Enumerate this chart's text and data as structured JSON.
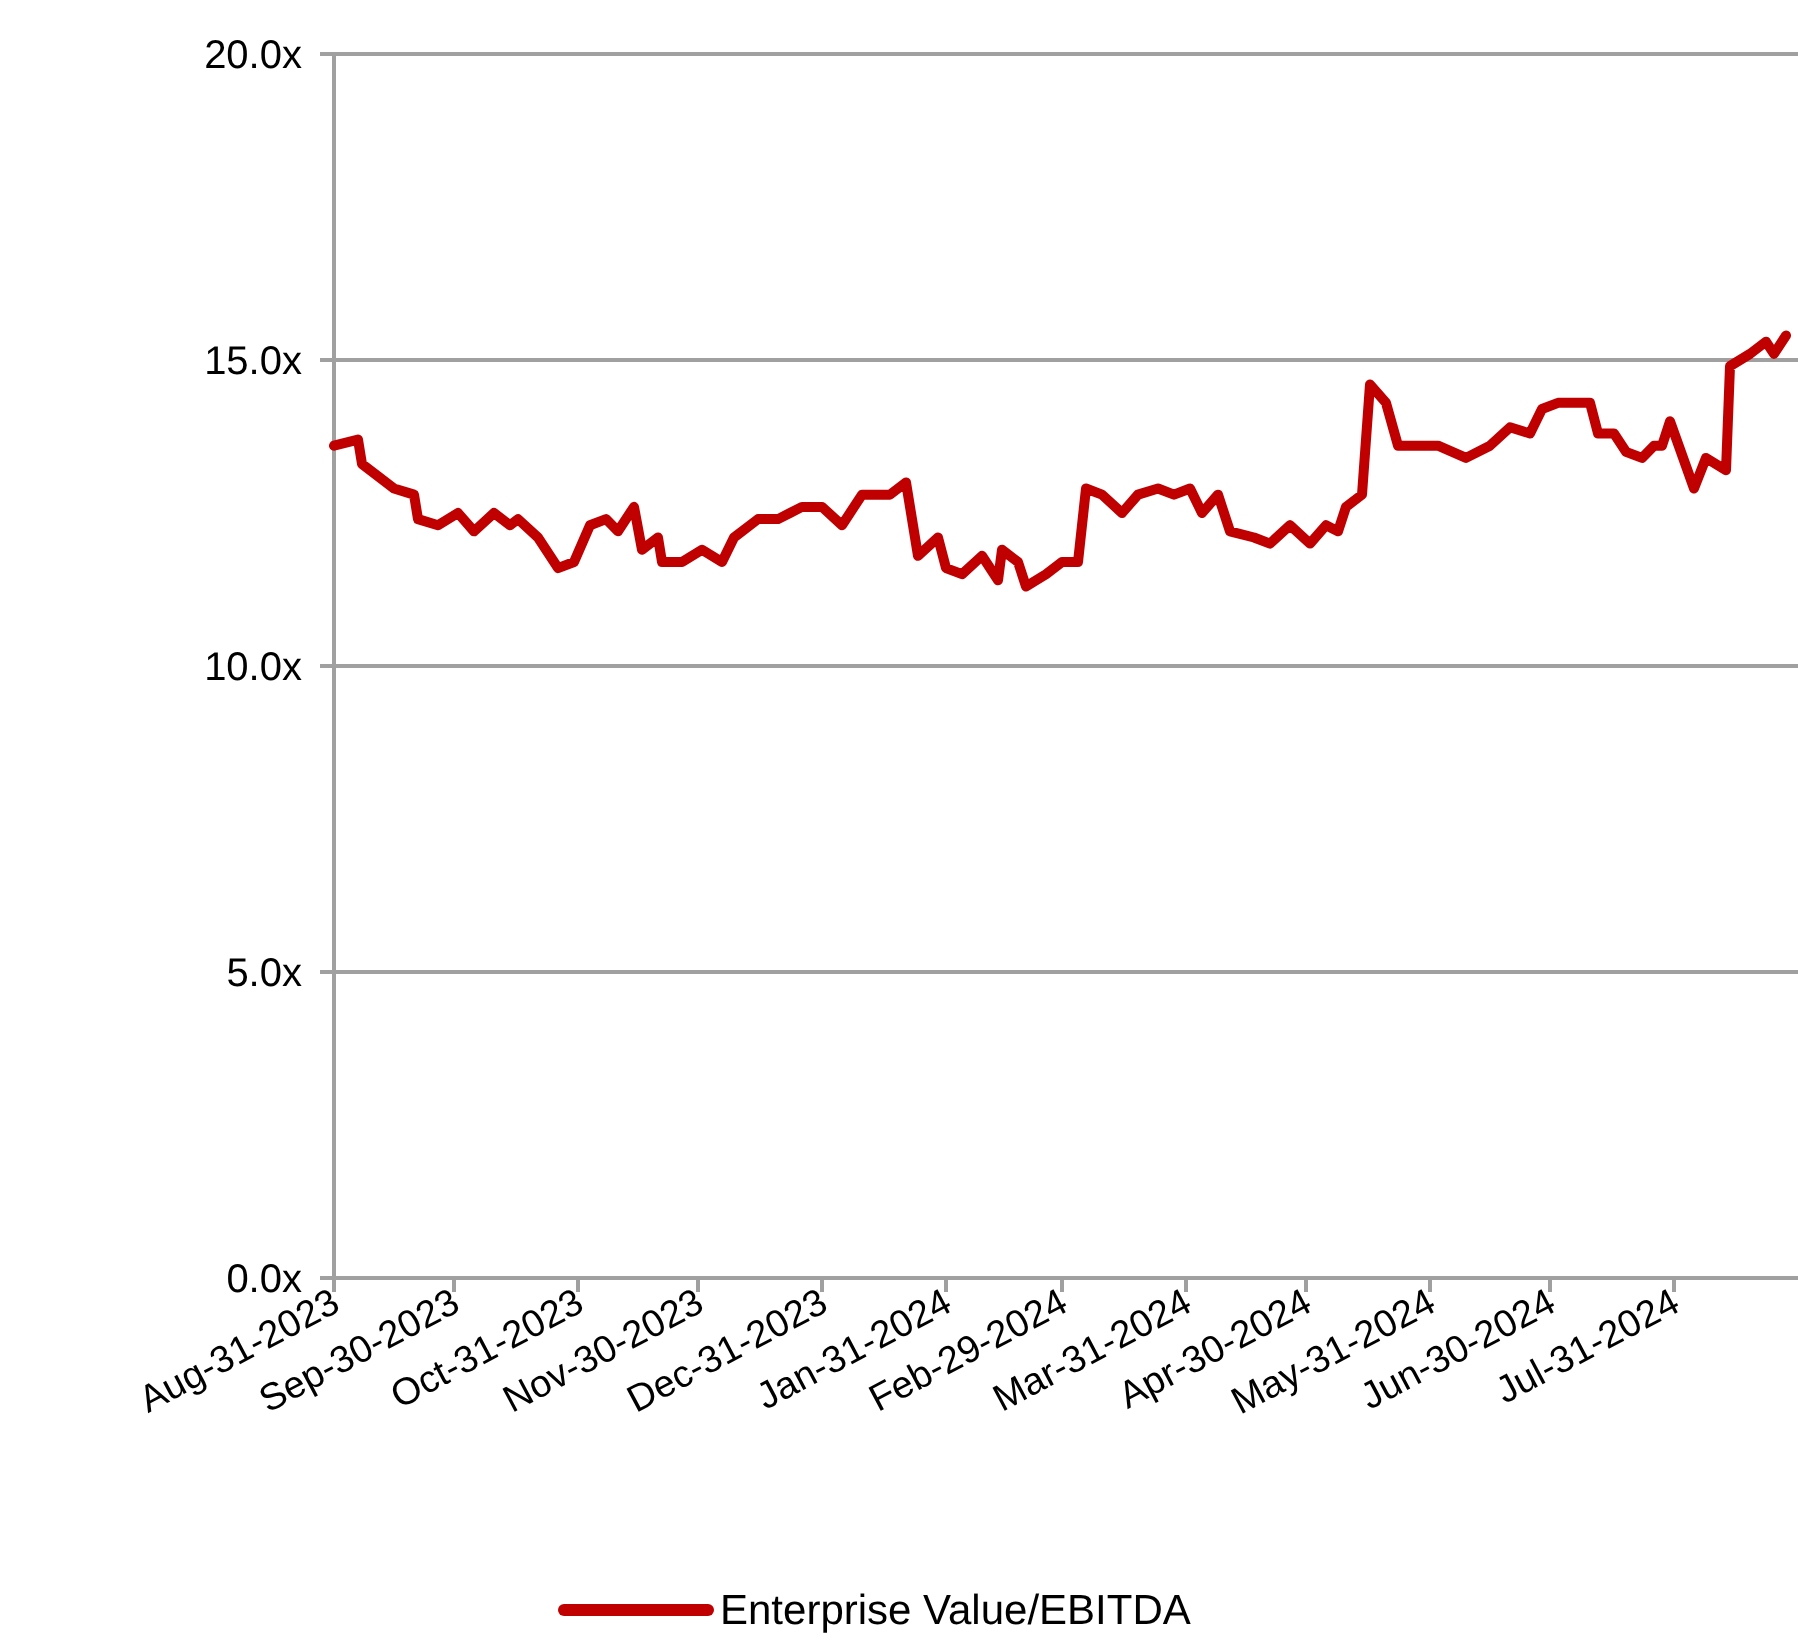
{
  "chart_data": {
    "type": "line",
    "x": [
      "2023-08-31",
      "2023-09-06",
      "2023-09-07",
      "2023-09-11",
      "2023-09-15",
      "2023-09-20",
      "2023-09-21",
      "2023-09-26",
      "2023-10-01",
      "2023-10-05",
      "2023-10-10",
      "2023-10-14",
      "2023-10-16",
      "2023-10-21",
      "2023-10-26",
      "2023-10-30",
      "2023-11-03",
      "2023-11-07",
      "2023-11-10",
      "2023-11-14",
      "2023-11-16",
      "2023-11-20",
      "2023-11-21",
      "2023-11-26",
      "2023-12-01",
      "2023-12-06",
      "2023-12-09",
      "2023-12-15",
      "2023-12-20",
      "2023-12-23",
      "2023-12-26",
      "2023-12-31",
      "2024-01-05",
      "2024-01-10",
      "2024-01-17",
      "2024-01-21",
      "2024-01-24",
      "2024-01-29",
      "2024-01-31",
      "2024-02-04",
      "2024-02-09",
      "2024-02-13",
      "2024-02-14",
      "2024-02-18",
      "2024-02-20",
      "2024-02-25",
      "2024-02-29",
      "2024-03-04",
      "2024-03-06",
      "2024-03-10",
      "2024-03-15",
      "2024-03-19",
      "2024-03-24",
      "2024-03-28",
      "2024-04-01",
      "2024-04-04",
      "2024-04-08",
      "2024-04-11",
      "2024-04-17",
      "2024-04-21",
      "2024-04-26",
      "2024-05-01",
      "2024-05-05",
      "2024-05-08",
      "2024-05-10",
      "2024-05-14",
      "2024-05-16",
      "2024-05-20",
      "2024-05-23",
      "2024-05-27",
      "2024-06-02",
      "2024-06-09",
      "2024-06-15",
      "2024-06-20",
      "2024-06-25",
      "2024-06-28",
      "2024-07-02",
      "2024-07-10",
      "2024-07-12",
      "2024-07-16",
      "2024-07-19",
      "2024-07-23",
      "2024-07-26",
      "2024-07-28",
      "2024-07-30",
      "2024-08-05",
      "2024-08-08",
      "2024-08-13",
      "2024-08-14",
      "2024-08-19",
      "2024-08-23",
      "2024-08-25",
      "2024-08-28"
    ],
    "series": [
      {
        "name": "Enterprise Value/EBITDA",
        "color": "#c00000",
        "values": [
          13.6,
          13.7,
          13.3,
          13.1,
          12.9,
          12.8,
          12.4,
          12.3,
          12.5,
          12.2,
          12.5,
          12.3,
          12.4,
          12.1,
          11.6,
          11.7,
          12.3,
          12.4,
          12.2,
          12.6,
          11.9,
          12.1,
          11.7,
          11.7,
          11.9,
          11.7,
          12.1,
          12.4,
          12.4,
          12.5,
          12.6,
          12.6,
          12.3,
          12.8,
          12.8,
          13.0,
          11.8,
          12.1,
          11.6,
          11.5,
          11.8,
          11.4,
          11.9,
          11.7,
          11.3,
          11.5,
          11.7,
          11.7,
          12.9,
          12.8,
          12.5,
          12.8,
          12.9,
          12.8,
          12.9,
          12.5,
          12.8,
          12.2,
          12.1,
          12.0,
          12.3,
          12.0,
          12.3,
          12.2,
          12.6,
          12.8,
          14.6,
          14.3,
          13.6,
          13.6,
          13.6,
          13.4,
          13.6,
          13.9,
          13.8,
          14.2,
          14.3,
          14.3,
          13.8,
          13.8,
          13.5,
          13.4,
          13.6,
          13.6,
          14.0,
          12.9,
          13.4,
          13.2,
          14.9,
          15.1,
          15.3,
          15.1,
          15.4
        ]
      }
    ],
    "xlim": [
      "2023-08-31",
      "2024-08-31"
    ],
    "xticks": [
      {
        "value": "2023-08-31",
        "label": "Aug-31-2023"
      },
      {
        "value": "2023-09-30",
        "label": "Sep-30-2023"
      },
      {
        "value": "2023-10-31",
        "label": "Oct-31-2023"
      },
      {
        "value": "2023-11-30",
        "label": "Nov-30-2023"
      },
      {
        "value": "2023-12-31",
        "label": "Dec-31-2023"
      },
      {
        "value": "2024-01-31",
        "label": "Jan-31-2024"
      },
      {
        "value": "2024-02-29",
        "label": "Feb-29-2024"
      },
      {
        "value": "2024-03-31",
        "label": "Mar-31-2024"
      },
      {
        "value": "2024-04-30",
        "label": "Apr-30-2024"
      },
      {
        "value": "2024-05-31",
        "label": "May-31-2024"
      },
      {
        "value": "2024-06-30",
        "label": "Jun-30-2024"
      },
      {
        "value": "2024-07-31",
        "label": "Jul-31-2024"
      }
    ],
    "ylim": [
      0,
      20
    ],
    "yticks": [
      {
        "value": 0,
        "label": "0.0x"
      },
      {
        "value": 5,
        "label": "5.0x"
      },
      {
        "value": 10,
        "label": "10.0x"
      },
      {
        "value": 15,
        "label": "15.0x"
      },
      {
        "value": 20,
        "label": "20.0x"
      }
    ],
    "grid": "y",
    "legend": "bottom",
    "marker": "none",
    "line_style": "solid"
  }
}
